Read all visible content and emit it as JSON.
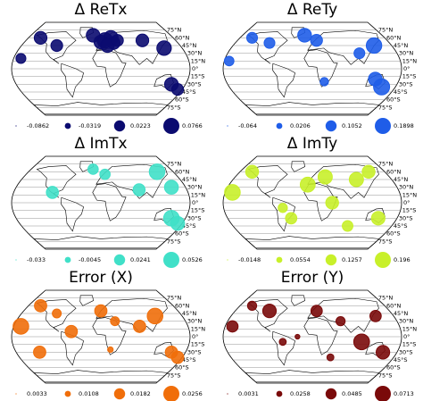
{
  "lat_ticks": [
    {
      "value": 75,
      "label": "75°N"
    },
    {
      "value": 60,
      "label": "60°N"
    },
    {
      "value": 45,
      "label": "45°N"
    },
    {
      "value": 30,
      "label": "30°N"
    },
    {
      "value": 15,
      "label": "15°N"
    },
    {
      "value": 0,
      "label": "0°"
    },
    {
      "value": -15,
      "label": "15°S"
    },
    {
      "value": -30,
      "label": "30°S"
    },
    {
      "value": -45,
      "label": "45°S"
    },
    {
      "value": -60,
      "label": "60°S"
    },
    {
      "value": -75,
      "label": "75°S"
    }
  ],
  "chart_data": [
    {
      "type": "bubble-map",
      "title": "Δ ReTx",
      "color": "#0b0b70",
      "legend": [
        -0.0862,
        -0.0319,
        0.0223,
        0.0766
      ],
      "lon": [
        10,
        25,
        0,
        30,
        15,
        40,
        100,
        140,
        150,
        -100,
        -150,
        -20,
        -165,
        170
      ],
      "lat": [
        55,
        60,
        52,
        50,
        45,
        55,
        55,
        40,
        -30,
        45,
        60,
        65,
        20,
        -40
      ],
      "values": [
        0.07,
        0.06,
        0.05,
        0.04,
        0.05,
        0.03,
        0.04,
        0.06,
        0.05,
        0.03,
        0.04,
        0.05,
        0.01,
        0.03
      ]
    },
    {
      "type": "bubble-map",
      "title": "Δ ReTy",
      "color": "#1f5de8",
      "legend": [
        -0.064,
        0.0206,
        0.1052,
        0.1898
      ],
      "lon": [
        10,
        -20,
        -100,
        140,
        150,
        130,
        -170,
        25,
        100,
        -150
      ],
      "lat": [
        55,
        65,
        50,
        45,
        -35,
        -20,
        15,
        -25,
        30,
        60
      ],
      "values": [
        0.12,
        0.15,
        0.1,
        0.18,
        0.19,
        0.15,
        0.08,
        0.06,
        0.1,
        0.1
      ]
    },
    {
      "type": "bubble-map",
      "title": "Δ ImTx",
      "color": "#40e0c8",
      "legend": [
        -0.033,
        -0.0045,
        0.0241,
        0.0526
      ],
      "lon": [
        140,
        150,
        150,
        -100,
        80,
        10,
        -20,
        170
      ],
      "lat": [
        60,
        30,
        -30,
        20,
        25,
        55,
        65,
        -40
      ],
      "values": [
        0.05,
        0.04,
        0.05,
        0.03,
        0.03,
        0.02,
        0.02,
        0.04
      ]
    },
    {
      "type": "bubble-map",
      "title": "Δ ImTy",
      "color": "#c8f02a",
      "legend": [
        -0.0148,
        0.0554,
        0.1257,
        0.196
      ],
      "lon": [
        -150,
        -165,
        -10,
        30,
        100,
        40,
        -60,
        -45,
        140,
        80,
        140
      ],
      "lat": [
        60,
        20,
        35,
        50,
        45,
        0,
        -10,
        -30,
        -30,
        -45,
        60
      ],
      "values": [
        0.15,
        0.19,
        0.18,
        0.17,
        0.17,
        0.15,
        0.1,
        0.13,
        0.16,
        0.12,
        0.15
      ]
    },
    {
      "type": "bubble-map",
      "title": "Error (X)",
      "color": "#f06e0a",
      "legend": [
        0.0033,
        0.0108,
        0.0182,
        0.0256
      ],
      "lon": [
        -150,
        -100,
        -60,
        0,
        30,
        80,
        120,
        150,
        -165,
        -130,
        20,
        170
      ],
      "lat": [
        60,
        45,
        10,
        50,
        30,
        20,
        40,
        -30,
        20,
        -30,
        -25,
        -40
      ],
      "values": [
        0.02,
        0.015,
        0.02,
        0.02,
        0.015,
        0.02,
        0.025,
        0.02,
        0.025,
        0.02,
        0.01,
        0.02
      ]
    },
    {
      "type": "bubble-map",
      "title": "Error (Y)",
      "color": "#7a0a0a",
      "legend": [
        0.0031,
        0.0258,
        0.0485,
        0.0713
      ],
      "lon": [
        -150,
        -100,
        -165,
        -60,
        10,
        60,
        100,
        140,
        150,
        40,
        -30
      ],
      "lat": [
        60,
        50,
        20,
        -10,
        50,
        30,
        -10,
        40,
        -30,
        -40,
        0
      ],
      "values": [
        0.04,
        0.06,
        0.05,
        0.03,
        0.05,
        0.04,
        0.07,
        0.05,
        0.06,
        0.03,
        0.02
      ]
    }
  ]
}
